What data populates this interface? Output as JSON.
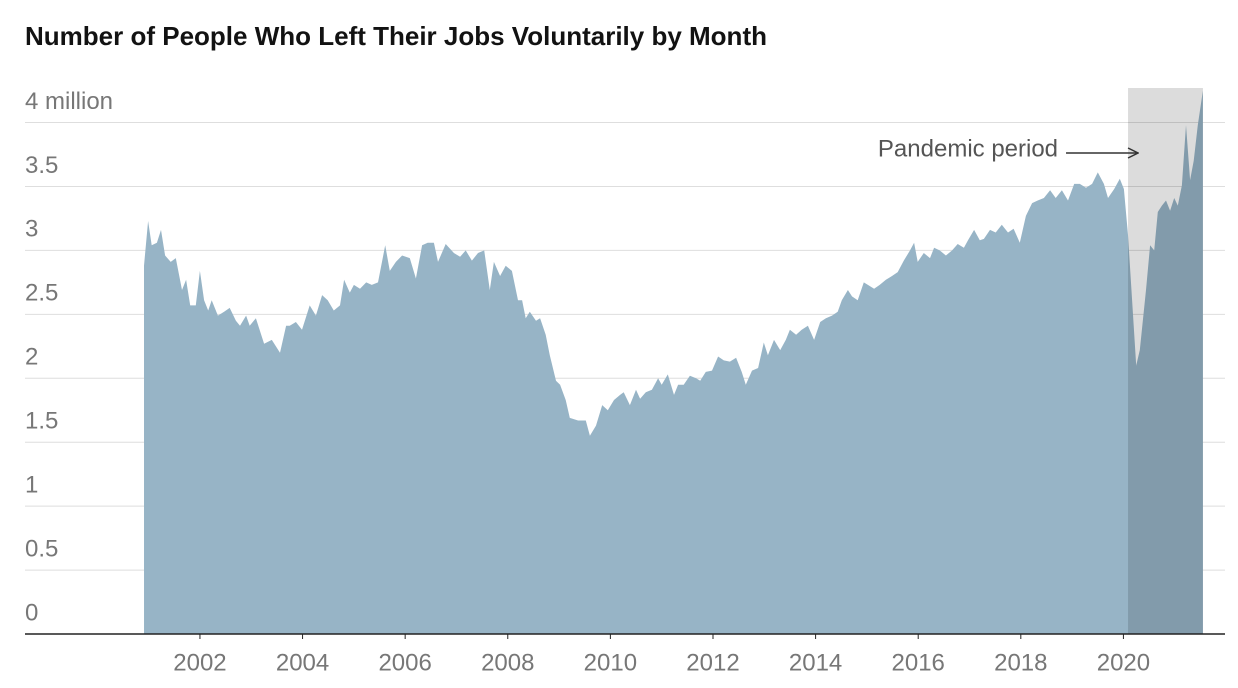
{
  "chart_data": {
    "type": "area",
    "title": "Number of People Who Left Their Jobs Voluntarily by Month",
    "x": [
      2000.91,
      2000.99,
      2001.06,
      2001.16,
      2001.24,
      2001.32,
      2001.43,
      2001.53,
      2001.65,
      2001.73,
      2001.81,
      2001.92,
      2002.0,
      2002.08,
      2002.16,
      2002.23,
      2002.35,
      2002.47,
      2002.58,
      2002.7,
      2002.78,
      2002.9,
      2002.97,
      2003.09,
      2003.25,
      2003.4,
      2003.56,
      2003.68,
      2003.75,
      2003.87,
      2003.99,
      2004.14,
      2004.26,
      2004.38,
      2004.49,
      2004.61,
      2004.73,
      2004.81,
      2004.92,
      2005.0,
      2005.12,
      2005.24,
      2005.35,
      2005.47,
      2005.61,
      2005.7,
      2005.82,
      2005.94,
      2006.09,
      2006.21,
      2006.33,
      2006.44,
      2006.56,
      2006.64,
      2006.79,
      2006.95,
      2007.07,
      2007.18,
      2007.3,
      2007.42,
      2007.54,
      2007.65,
      2007.73,
      2007.85,
      2007.96,
      2008.08,
      2008.2,
      2008.28,
      2008.35,
      2008.43,
      2008.55,
      2008.63,
      2008.74,
      2008.82,
      2008.94,
      2009.02,
      2009.13,
      2009.21,
      2009.37,
      2009.52,
      2009.6,
      2009.72,
      2009.84,
      2009.95,
      2010.07,
      2010.19,
      2010.26,
      2010.38,
      2010.5,
      2010.58,
      2010.69,
      2010.81,
      2010.93,
      2011.0,
      2011.12,
      2011.24,
      2011.32,
      2011.43,
      2011.55,
      2011.67,
      2011.75,
      2011.86,
      2011.98,
      2012.1,
      2012.21,
      2012.33,
      2012.45,
      2012.56,
      2012.64,
      2012.76,
      2012.88,
      2012.99,
      2013.07,
      2013.19,
      2013.31,
      2013.42,
      2013.5,
      2013.62,
      2013.73,
      2013.85,
      2013.97,
      2014.09,
      2014.2,
      2014.32,
      2014.43,
      2014.51,
      2014.63,
      2014.71,
      2014.82,
      2014.94,
      2015.02,
      2015.14,
      2015.25,
      2015.37,
      2015.49,
      2015.6,
      2015.72,
      2015.84,
      2015.92,
      2015.99,
      2016.11,
      2016.23,
      2016.31,
      2016.42,
      2016.54,
      2016.66,
      2016.77,
      2016.89,
      2016.97,
      2017.09,
      2017.2,
      2017.28,
      2017.4,
      2017.51,
      2017.63,
      2017.75,
      2017.86,
      2017.98,
      2018.1,
      2018.22,
      2018.33,
      2018.45,
      2018.57,
      2018.68,
      2018.8,
      2018.92,
      2019.04,
      2019.15,
      2019.27,
      2019.39,
      2019.5,
      2019.62,
      2019.7,
      2019.82,
      2019.93,
      2020.01,
      2020.09,
      2020.17,
      2020.25,
      2020.32,
      2020.44,
      2020.52,
      2020.6,
      2020.67,
      2020.75,
      2020.83,
      2020.91,
      2020.99,
      2021.06,
      2021.14,
      2021.22,
      2021.3,
      2021.37,
      2021.45,
      2021.55
    ],
    "values": [
      2.88,
      3.23,
      3.04,
      3.06,
      3.16,
      2.96,
      2.91,
      2.94,
      2.69,
      2.77,
      2.57,
      2.57,
      2.84,
      2.61,
      2.53,
      2.61,
      2.49,
      2.52,
      2.55,
      2.45,
      2.41,
      2.49,
      2.41,
      2.47,
      2.27,
      2.3,
      2.2,
      2.41,
      2.41,
      2.44,
      2.38,
      2.57,
      2.49,
      2.65,
      2.61,
      2.53,
      2.57,
      2.77,
      2.67,
      2.73,
      2.7,
      2.75,
      2.73,
      2.75,
      3.04,
      2.84,
      2.91,
      2.96,
      2.94,
      2.78,
      3.04,
      3.06,
      3.06,
      2.91,
      3.05,
      2.98,
      2.95,
      3.0,
      2.92,
      2.98,
      3.0,
      2.69,
      2.91,
      2.8,
      2.88,
      2.84,
      2.61,
      2.61,
      2.47,
      2.52,
      2.45,
      2.47,
      2.34,
      2.18,
      1.98,
      1.95,
      1.83,
      1.69,
      1.67,
      1.67,
      1.55,
      1.63,
      1.79,
      1.75,
      1.83,
      1.87,
      1.89,
      1.79,
      1.91,
      1.84,
      1.89,
      1.91,
      2.0,
      1.95,
      2.03,
      1.87,
      1.95,
      1.95,
      2.02,
      2.0,
      1.98,
      2.05,
      2.06,
      2.17,
      2.14,
      2.13,
      2.16,
      2.05,
      1.95,
      2.06,
      2.08,
      2.28,
      2.18,
      2.3,
      2.22,
      2.3,
      2.38,
      2.34,
      2.38,
      2.41,
      2.3,
      2.44,
      2.47,
      2.49,
      2.52,
      2.61,
      2.69,
      2.64,
      2.61,
      2.75,
      2.73,
      2.7,
      2.73,
      2.77,
      2.8,
      2.83,
      2.92,
      3.0,
      3.06,
      2.91,
      2.98,
      2.94,
      3.02,
      3.0,
      2.96,
      3.0,
      3.05,
      3.02,
      3.08,
      3.16,
      3.08,
      3.09,
      3.16,
      3.14,
      3.2,
      3.14,
      3.17,
      3.06,
      3.27,
      3.37,
      3.39,
      3.41,
      3.47,
      3.41,
      3.47,
      3.39,
      3.52,
      3.52,
      3.49,
      3.52,
      3.61,
      3.52,
      3.41,
      3.48,
      3.56,
      3.48,
      3.12,
      2.61,
      2.1,
      2.22,
      2.69,
      3.04,
      3.0,
      3.3,
      3.35,
      3.39,
      3.31,
      3.41,
      3.35,
      3.51,
      3.98,
      3.55,
      3.7,
      3.98,
      4.25
    ],
    "color": "#97b4c6",
    "xlim": [
      1998.59,
      2021.98
    ],
    "ylim": [
      0,
      4.27
    ],
    "xticks": [
      2002,
      2004,
      2006,
      2008,
      2010,
      2012,
      2014,
      2016,
      2018,
      2020
    ],
    "yticks": [
      0,
      0.5,
      1,
      1.5,
      2,
      2.5,
      3,
      3.5,
      {
        "value": 4,
        "label": "4 million"
      }
    ],
    "grid": true,
    "annotation": {
      "text": "Pandemic period",
      "x_range": [
        2020.09,
        2021.55
      ],
      "color": "#dcdcdc"
    }
  }
}
